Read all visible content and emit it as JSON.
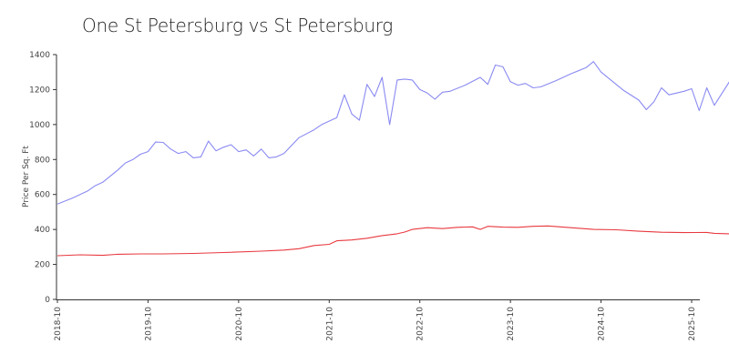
{
  "chart_data": {
    "type": "line",
    "title": "One St Petersburg vs St Petersburg",
    "xlabel": "",
    "ylabel": "Price Per Sq. Ft",
    "ylim": [
      0,
      1400
    ],
    "yticks": [
      0,
      200,
      400,
      600,
      800,
      1000,
      1200,
      1400
    ],
    "xlim": [
      "2018-10",
      "2025-12"
    ],
    "xticks": [
      "2018-10",
      "2019-10",
      "2020-10",
      "2021-10",
      "2022-10",
      "2023-10",
      "2024-10",
      "2025-10"
    ],
    "grid": false,
    "legend": "none",
    "colors": {
      "series1": "#8a8af2",
      "series2": "#e8393f",
      "axis": "#333333"
    },
    "series": [
      {
        "values": [
          [
            "2018-10",
            545
          ],
          [
            "2018-12",
            580
          ],
          [
            "2019-02",
            620
          ],
          [
            "2019-03",
            650
          ],
          [
            "2019-04",
            670
          ],
          [
            "2019-06",
            740
          ],
          [
            "2019-07",
            780
          ],
          [
            "2019-08",
            800
          ],
          [
            "2019-09",
            830
          ],
          [
            "2019-10",
            845
          ],
          [
            "2019-11",
            900
          ],
          [
            "2019-12",
            898
          ],
          [
            "2020-01",
            860
          ],
          [
            "2020-02",
            835
          ],
          [
            "2020-03",
            845
          ],
          [
            "2020-04",
            810
          ],
          [
            "2020-05",
            815
          ],
          [
            "2020-06",
            905
          ],
          [
            "2020-07",
            850
          ],
          [
            "2020-08",
            870
          ],
          [
            "2020-09",
            885
          ],
          [
            "2020-10",
            845
          ],
          [
            "2020-11",
            855
          ],
          [
            "2020-12",
            820
          ],
          [
            "2021-01",
            860
          ],
          [
            "2021-02",
            810
          ],
          [
            "2021-03",
            815
          ],
          [
            "2021-04",
            835
          ],
          [
            "2021-06",
            925
          ],
          [
            "2021-08",
            970
          ],
          [
            "2021-09",
            1000
          ],
          [
            "2021-11",
            1040
          ],
          [
            "2021-12",
            1170
          ],
          [
            "2022-01",
            1060
          ],
          [
            "2022-02",
            1025
          ],
          [
            "2022-03",
            1230
          ],
          [
            "2022-04",
            1160
          ],
          [
            "2022-05",
            1270
          ],
          [
            "2022-06",
            1000
          ],
          [
            "2022-07",
            1255
          ],
          [
            "2022-08",
            1260
          ],
          [
            "2022-09",
            1255
          ],
          [
            "2022-10",
            1200
          ],
          [
            "2022-11",
            1180
          ],
          [
            "2022-12",
            1145
          ],
          [
            "2023-01",
            1185
          ],
          [
            "2023-02",
            1190
          ],
          [
            "2023-04",
            1225
          ],
          [
            "2023-06",
            1270
          ],
          [
            "2023-07",
            1230
          ],
          [
            "2023-08",
            1340
          ],
          [
            "2023-09",
            1330
          ],
          [
            "2023-10",
            1245
          ],
          [
            "2023-11",
            1225
          ],
          [
            "2023-12",
            1235
          ],
          [
            "2024-01",
            1210
          ],
          [
            "2024-02",
            1215
          ],
          [
            "2024-04",
            1250
          ],
          [
            "2024-06",
            1290
          ],
          [
            "2024-08",
            1325
          ],
          [
            "2024-09",
            1360
          ],
          [
            "2024-10",
            1300
          ],
          [
            "2025-01",
            1195
          ],
          [
            "2025-03",
            1140
          ],
          [
            "2025-04",
            1085
          ],
          [
            "2025-05",
            1130
          ],
          [
            "2025-06",
            1210
          ],
          [
            "2025-07",
            1170
          ],
          [
            "2025-09",
            1190
          ],
          [
            "2025-10",
            1205
          ],
          [
            "2025-11",
            1080
          ],
          [
            "2025-12",
            1210
          ],
          [
            "2026-01",
            1110
          ],
          [
            "2026-03",
            1245
          ]
        ]
      },
      {
        "values": [
          [
            "2018-10",
            250
          ],
          [
            "2019-01",
            255
          ],
          [
            "2019-04",
            252
          ],
          [
            "2019-06",
            258
          ],
          [
            "2019-09",
            260
          ],
          [
            "2019-12",
            260
          ],
          [
            "2020-04",
            263
          ],
          [
            "2020-08",
            268
          ],
          [
            "2021-01",
            276
          ],
          [
            "2021-04",
            282
          ],
          [
            "2021-06",
            290
          ],
          [
            "2021-08",
            308
          ],
          [
            "2021-10",
            315
          ],
          [
            "2021-11",
            335
          ],
          [
            "2022-01",
            340
          ],
          [
            "2022-03",
            350
          ],
          [
            "2022-05",
            365
          ],
          [
            "2022-07",
            375
          ],
          [
            "2022-08",
            385
          ],
          [
            "2022-09",
            400
          ],
          [
            "2022-11",
            410
          ],
          [
            "2023-01",
            405
          ],
          [
            "2023-03",
            412
          ],
          [
            "2023-05",
            415
          ],
          [
            "2023-06",
            400
          ],
          [
            "2023-07",
            418
          ],
          [
            "2023-09",
            413
          ],
          [
            "2023-11",
            412
          ],
          [
            "2024-01",
            418
          ],
          [
            "2024-03",
            420
          ],
          [
            "2024-06",
            410
          ],
          [
            "2024-09",
            400
          ],
          [
            "2024-12",
            398
          ],
          [
            "2025-03",
            390
          ],
          [
            "2025-06",
            384
          ],
          [
            "2025-09",
            382
          ],
          [
            "2025-12",
            383
          ],
          [
            "2026-01",
            378
          ],
          [
            "2026-03",
            375
          ]
        ]
      }
    ]
  }
}
